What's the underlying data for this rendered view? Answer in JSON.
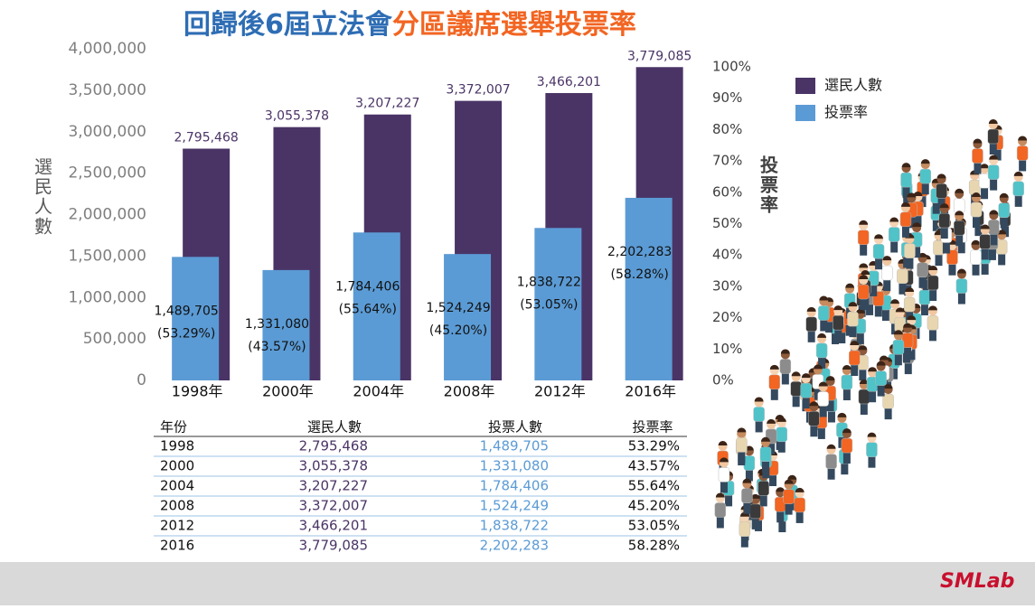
{
  "chart_data": {
    "type": "bar",
    "title": "回歸後6屆立法會",
    "title_highlight": "分區議席選舉投票率",
    "y_label": "選民人數",
    "y2_label": "投票率",
    "categories": [
      "1998年",
      "2000年",
      "2004年",
      "2008年",
      "2012年",
      "2016年"
    ],
    "series": [
      {
        "name": "選民人數",
        "color": "#4a3466",
        "values": [
          2795468,
          3055378,
          3207227,
          3372007,
          3466201,
          3779085
        ],
        "value_labels": [
          "2,795,468",
          "3,055,378",
          "3,207,227",
          "3,372,007",
          "3,466,201",
          "3,779,085"
        ]
      },
      {
        "name": "投票率",
        "color": "#5b9bd5",
        "values": [
          1489705,
          1331080,
          1784406,
          1524249,
          1838722,
          2202283
        ],
        "value_labels": [
          "1,489,705",
          "1,331,080",
          "1,784,406",
          "1,524,249",
          "1,838,722",
          "2,202,283"
        ],
        "rate_labels": [
          "(53.29%)",
          "(43.57%)",
          "(55.64%)",
          "(45.20%)",
          "(53.05%)",
          "(58.28%)"
        ]
      }
    ],
    "ylim": [
      0,
      4000000
    ],
    "yticks": [
      0,
      {
        "value": 500000,
        "label": "500,000"
      },
      {
        "value": 1000000,
        "label": "1,000,000"
      },
      {
        "value": 1500000,
        "label": "1,500,000"
      },
      {
        "value": 2000000,
        "label": "2,000,000"
      },
      {
        "value": 2500000,
        "label": "2,500,000"
      },
      {
        "value": 3000000,
        "label": "3,000,000"
      },
      {
        "value": 3500000,
        "label": "3,500,000"
      },
      {
        "value": 4000000,
        "label": "4,000,000"
      }
    ],
    "y2lim": [
      0,
      100
    ],
    "y2ticks": [
      {
        "value": 0,
        "label": "0%"
      },
      {
        "value": 10,
        "label": "10%"
      },
      {
        "value": 20,
        "label": "20%"
      },
      {
        "value": 30,
        "label": "30%"
      },
      {
        "value": 40,
        "label": "40%"
      },
      {
        "value": 50,
        "label": "50%"
      },
      {
        "value": 60,
        "label": "60%"
      },
      {
        "value": 70,
        "label": "70%"
      },
      {
        "value": 80,
        "label": "80%"
      },
      {
        "value": 90,
        "label": "90%"
      },
      {
        "value": 100,
        "label": "100%"
      }
    ],
    "grid": false,
    "legend": "upper right"
  },
  "table": {
    "header": [
      "年份",
      "選民人數",
      "投票人數",
      "投票率"
    ],
    "rows": [
      [
        "1998",
        "2,795,468",
        "1,489,705",
        "53.29%"
      ],
      [
        "2000",
        "3,055,378",
        "1,331,080",
        "43.57%"
      ],
      [
        "2004",
        "3,207,227",
        "1,784,406",
        "55.64%"
      ],
      [
        "2008",
        "3,372,007",
        "1,524,249",
        "45.20%"
      ],
      [
        "2012",
        "3,466,201",
        "1,838,722",
        "53.05%"
      ],
      [
        "2016",
        "3,779,085",
        "2,202,283",
        "58.28%"
      ]
    ]
  },
  "footer": {
    "logo": "SMLab"
  }
}
